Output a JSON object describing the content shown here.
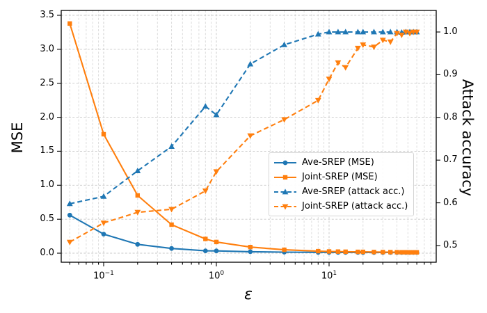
{
  "figure": {
    "background": "#ffffff"
  },
  "chart_data": {
    "type": "line",
    "title": "",
    "xlabel": "ε",
    "ylabel_left": "MSE",
    "ylabel_right": "Attack accuracy",
    "x_scale": "log",
    "xlim": [
      0.042,
      89.2
    ],
    "ylim_left": [
      -0.133,
      3.572
    ],
    "ylim_right": [
      0.461,
      1.0505
    ],
    "grid": {
      "visible": true,
      "style": "dashed",
      "x_minor": true,
      "color_major": "#c8c8c8",
      "color_minor": "#d8d8d8"
    },
    "legend_position": "inside center-right",
    "x_major_ticks": [
      {
        "value": 0.1,
        "mantissa": "10",
        "exponent": "−1"
      },
      {
        "value": 1,
        "mantissa": "10",
        "exponent": "0"
      },
      {
        "value": 10,
        "mantissa": "10",
        "exponent": "1"
      }
    ],
    "x_minor_ticks": [
      0.05,
      0.06,
      0.07,
      0.08,
      0.09,
      0.2,
      0.3,
      0.4,
      0.5,
      0.6,
      0.7,
      0.8,
      0.9,
      2,
      3,
      4,
      5,
      6,
      7,
      8,
      9,
      20,
      30,
      40,
      50,
      60,
      70,
      80
    ],
    "y_left_ticks": [
      {
        "value": 0.0,
        "label": "0.0"
      },
      {
        "value": 0.5,
        "label": "0.5"
      },
      {
        "value": 1.0,
        "label": "1.0"
      },
      {
        "value": 1.5,
        "label": "1.5"
      },
      {
        "value": 2.0,
        "label": "2.0"
      },
      {
        "value": 2.5,
        "label": "2.5"
      },
      {
        "value": 3.0,
        "label": "3.0"
      },
      {
        "value": 3.5,
        "label": "3.5"
      }
    ],
    "y_right_ticks": [
      {
        "value": 0.5,
        "label": "0.5"
      },
      {
        "value": 0.6,
        "label": "0.6"
      },
      {
        "value": 0.7,
        "label": "0.7"
      },
      {
        "value": 0.8,
        "label": "0.8"
      },
      {
        "value": 0.9,
        "label": "0.9"
      },
      {
        "value": 1.0,
        "label": "1.0"
      }
    ],
    "x": [
      0.05,
      0.1,
      0.2,
      0.4,
      0.8,
      1,
      2,
      4,
      8,
      10,
      12,
      14,
      18,
      20,
      25,
      30,
      35,
      40,
      44,
      48,
      52,
      56,
      60
    ],
    "series": [
      {
        "name": "Ave-SREP (MSE)",
        "axis": "left",
        "color": "#1f77b4",
        "line": "solid",
        "marker": "circle",
        "values": [
          0.56,
          0.28,
          0.13,
          0.07,
          0.035,
          0.034,
          0.022,
          0.015,
          0.012,
          0.012,
          0.011,
          0.011,
          0.011,
          0.01,
          0.01,
          0.01,
          0.01,
          0.01,
          0.01,
          0.01,
          0.01,
          0.01,
          0.01
        ]
      },
      {
        "name": "Joint-SREP (MSE)",
        "axis": "left",
        "color": "#ff7f0e",
        "line": "solid",
        "marker": "square",
        "values": [
          3.38,
          1.75,
          0.85,
          0.42,
          0.21,
          0.165,
          0.09,
          0.05,
          0.03,
          0.026,
          0.024,
          0.022,
          0.02,
          0.019,
          0.017,
          0.016,
          0.015,
          0.014,
          0.013,
          0.013,
          0.012,
          0.012,
          0.012
        ]
      },
      {
        "name": "Ave-SREP (attack acc.)",
        "axis": "right",
        "color": "#1f77b4",
        "line": "dashed",
        "marker": "triangle-up",
        "values": [
          0.598,
          0.615,
          0.675,
          0.732,
          0.826,
          0.806,
          0.925,
          0.97,
          0.995,
          1.0,
          1.0,
          1.0,
          1.0,
          1.0,
          1.0,
          1.0,
          1.0,
          1.0,
          0.999,
          1.0,
          1.0,
          1.0,
          1.0
        ]
      },
      {
        "name": "Joint-SREP (attack acc.)",
        "axis": "right",
        "color": "#ff7f0e",
        "line": "dashed",
        "marker": "triangle-down",
        "values": [
          0.508,
          0.553,
          0.578,
          0.585,
          0.628,
          0.673,
          0.757,
          0.795,
          0.84,
          0.89,
          0.928,
          0.917,
          0.962,
          0.97,
          0.965,
          0.981,
          0.977,
          0.997,
          0.993,
          1.0,
          0.997,
          1.0,
          1.0
        ]
      }
    ]
  }
}
